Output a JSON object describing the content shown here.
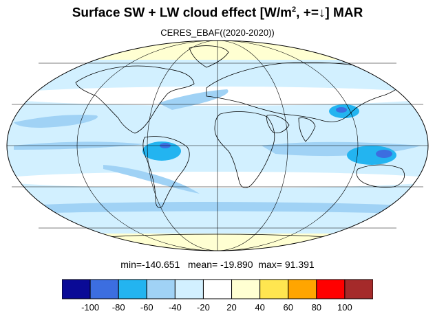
{
  "title": {
    "prefix": "Surface SW + LW cloud effect [W/m",
    "sup": "2",
    "suffix": ", +=↓]  MAR"
  },
  "subtitle": "CERES_EBAF((2020-2020))",
  "stats": {
    "min_label": "min=",
    "min": "-140.651",
    "mean_label": "mean=",
    "mean": "-19.890",
    "max_label": "max=",
    "max": "91.391"
  },
  "colorbar": {
    "colors": [
      "#0a0a96",
      "#3c6ee0",
      "#23b4f0",
      "#a0d2f5",
      "#d2f0ff",
      "#ffffff",
      "#ffffd2",
      "#ffe650",
      "#ffa500",
      "#ff0000",
      "#a52a2a"
    ],
    "labels": [
      "-100",
      "-80",
      "-60",
      "-40",
      "-20",
      "20",
      "40",
      "60",
      "80",
      "100"
    ]
  },
  "map": {
    "projection": "mollweide",
    "ocean_base_color": "#d2f0ff",
    "land_color": "#ffffff",
    "graticule": "on",
    "continent_names": [
      "north-america",
      "south-america",
      "greenland",
      "europe-asia",
      "africa",
      "arabia",
      "india",
      "australia",
      "antarctica"
    ]
  }
}
